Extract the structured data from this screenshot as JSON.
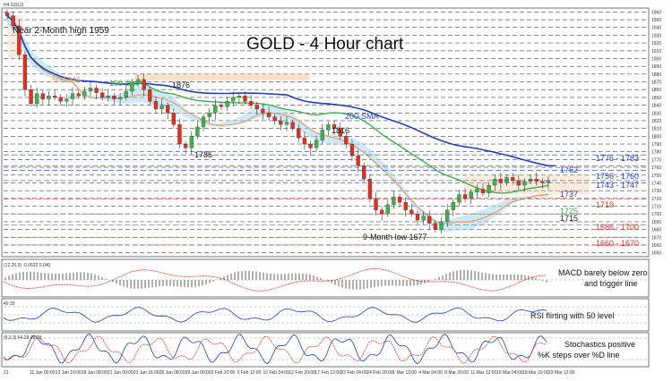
{
  "header": {
    "symbol": "H4 GOLD"
  },
  "title": "GOLD - 4 Hour chart",
  "price_axis": {
    "ticks": [
      "1960",
      "1950",
      "1940",
      "1930",
      "1920",
      "1910",
      "1900",
      "1890",
      "1880",
      "1870",
      "1860",
      "1850",
      "1840",
      "1830",
      "1820",
      "1810",
      "1800",
      "1790",
      "1780",
      "1770",
      "1760",
      "1750",
      "1740",
      "1730",
      "1720",
      "1710",
      "1700",
      "1690",
      "1680",
      "1670",
      "1660",
      "1650"
    ]
  },
  "time_axis": {
    "ticks": [
      "21",
      "11 Jan 00:00",
      "13 Jan 16:00",
      "18 Jan 08:00",
      "21 Jan 00:00",
      "23 Jan 16:00",
      "26 Jan 08:00",
      "29 Jan 00:00",
      "2 Feb 20:00",
      "5 Feb 12:00",
      "10 Feb 04:00",
      "12 Feb 20:00",
      "17 Feb 12:00",
      "22 Feb 04:00",
      "24 Feb 20:00",
      "1 Mar 12:00",
      "4 Mar 04:00",
      "8 Mar 20:00",
      "11 Mar 12:00",
      "16 Mar 04:00",
      "18 Mar 20:00",
      "23 Mar 12:00"
    ]
  },
  "annotations": {
    "high_note": "Near 2-Month high 1959",
    "sma50": "50-SMA",
    "sma100": "100-SMA",
    "sma200": "200-SMA",
    "p1876": "1876",
    "p1816": "1816",
    "p1785": "1785",
    "low_note": "9-Month low 1677"
  },
  "levels": [
    {
      "label": "1776 - 1783",
      "color": "#1f3fbf"
    },
    {
      "label": "1762",
      "color": "#1f3fbf"
    },
    {
      "label": "1756 - 1760",
      "color": "#1f3fbf"
    },
    {
      "label": "1743 - 1747",
      "color": "#1f3fbf"
    },
    {
      "label": "1737",
      "color": "#1f3fbf"
    },
    {
      "label": "1719",
      "color": "#e03020"
    },
    {
      "label": "1725",
      "color": "#3cb44b"
    },
    {
      "label": "1715",
      "color": "#222222"
    },
    {
      "label": "1686 - 1700",
      "color": "#e03020"
    },
    {
      "label": "1660 - 1670",
      "color": "#e03020"
    }
  ],
  "indicators": {
    "macd": {
      "header": "(12,26,9) -0.0532 0.040",
      "note_line1": "MACD barely below zero",
      "note_line2": "and trigger line"
    },
    "rsi": {
      "header": "49.18",
      "note": "RSI flirting with 50 level"
    },
    "stoch": {
      "header": "(5,3,3) 64.28 48.09",
      "note_line1": "Stochastics positive",
      "note_line2": "%K steps over %D line"
    }
  },
  "colors": {
    "sma50": "#e8a060",
    "sma100": "#3cb44b",
    "sma200": "#1f3fbf",
    "candle_up": "#3cb44b",
    "candle_down": "#e03020",
    "cloud": "#a8d8f0",
    "level_red": "#e03020",
    "level_blue": "#1f3fbf"
  },
  "chart_data": {
    "type": "candlestick",
    "title": "GOLD - 4 Hour chart",
    "ylim": [
      1645,
      1965
    ],
    "close": [
      1955,
      1942,
      1905,
      1860,
      1842,
      1855,
      1848,
      1852,
      1850,
      1845,
      1848,
      1855,
      1852,
      1858,
      1862,
      1856,
      1850,
      1852,
      1848,
      1850,
      1858,
      1870,
      1873,
      1860,
      1845,
      1835,
      1840,
      1830,
      1815,
      1790,
      1785,
      1800,
      1812,
      1825,
      1830,
      1840,
      1838,
      1845,
      1850,
      1852,
      1845,
      1840,
      1835,
      1830,
      1825,
      1820,
      1815,
      1818,
      1810,
      1798,
      1790,
      1785,
      1795,
      1808,
      1815,
      1810,
      1800,
      1790,
      1775,
      1762,
      1745,
      1720,
      1705,
      1700,
      1712,
      1722,
      1715,
      1705,
      1700,
      1692,
      1697,
      1688,
      1680,
      1690,
      1705,
      1715,
      1725,
      1720,
      1728,
      1732,
      1727,
      1737,
      1745,
      1740,
      1747,
      1743,
      1737,
      1742,
      1745,
      1742,
      1740,
      1743
    ],
    "sma50_endpoint": 1725,
    "sma100_endpoint": 1737,
    "sma200_endpoint": 1762,
    "levels": [
      1776,
      1783,
      1762,
      1756,
      1760,
      1743,
      1747,
      1737,
      1719,
      1725,
      1715,
      1686,
      1700,
      1660,
      1670
    ]
  }
}
